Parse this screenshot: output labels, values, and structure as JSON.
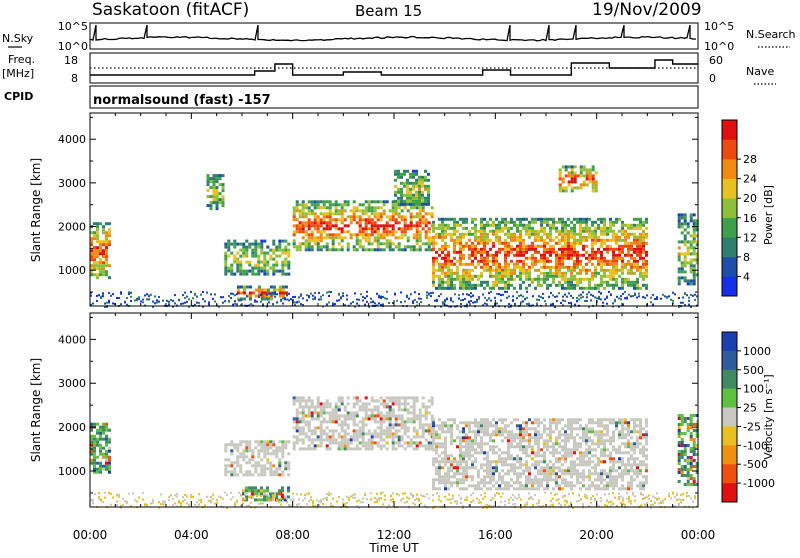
{
  "header": {
    "station": "Saskatoon (fitACF)",
    "beam": "Beam 15",
    "date": "19/Nov/2009"
  },
  "summary": {
    "nsky_label": "N.Sky",
    "nsky_ticks": [
      "10^5",
      "10^0"
    ],
    "nsearch_label": "N.Search",
    "nsearch_ticks": [
      "10^5",
      "10^0"
    ],
    "freq_label_1": "Freq.",
    "freq_label_2": "[MHz]",
    "freq_ticks": [
      "18",
      "8"
    ],
    "nave_label": "Nave",
    "nave_ticks": [
      "60",
      "0"
    ],
    "cpid_label": "CPID",
    "cpid_text": "normalsound (fast) -157"
  },
  "chart_data": [
    {
      "type": "heatmap",
      "name": "power",
      "xlabel": "Time UT",
      "ylabel": "Slant Range [km]",
      "xlim": [
        0,
        24
      ],
      "ylim": [
        180,
        4600
      ],
      "yticks": [
        1000,
        2000,
        3000,
        4000
      ],
      "colorbar": {
        "label": "Power [dB]",
        "ticks": [
          "4",
          "8",
          "12",
          "16",
          "20",
          "24",
          "28"
        ],
        "colors": [
          "#1530e8",
          "#1e4fa8",
          "#2f7d6e",
          "#3fa04a",
          "#8cc03a",
          "#e8c020",
          "#f08a10",
          "#ee4a10",
          "#e01010"
        ]
      },
      "echo_regions": [
        {
          "t_start": 0.0,
          "t_end": 0.8,
          "r_min": 800,
          "r_max": 2100,
          "level": "high"
        },
        {
          "t_start": 4.6,
          "t_end": 5.3,
          "r_min": 2400,
          "r_max": 3200,
          "level": "medium"
        },
        {
          "t_start": 5.3,
          "t_end": 7.8,
          "r_min": 900,
          "r_max": 1700,
          "level": "medium"
        },
        {
          "t_start": 5.8,
          "t_end": 7.8,
          "r_min": 350,
          "r_max": 650,
          "level": "high"
        },
        {
          "t_start": 8.0,
          "t_end": 13.5,
          "r_min": 1500,
          "r_max": 2600,
          "level": "high"
        },
        {
          "t_start": 12.0,
          "t_end": 13.4,
          "r_min": 2500,
          "r_max": 3300,
          "level": "medium"
        },
        {
          "t_start": 13.5,
          "t_end": 22.0,
          "r_min": 600,
          "r_max": 2200,
          "level": "high"
        },
        {
          "t_start": 18.5,
          "t_end": 20.0,
          "r_min": 2800,
          "r_max": 3400,
          "level": "high"
        },
        {
          "t_start": 23.2,
          "t_end": 24.0,
          "r_min": 700,
          "r_max": 2300,
          "level": "medium"
        }
      ]
    },
    {
      "type": "heatmap",
      "name": "velocity",
      "xlabel": "Time UT",
      "ylabel": "Slant Range [km]",
      "xlim": [
        0,
        24
      ],
      "ylim": [
        180,
        4600
      ],
      "yticks": [
        1000,
        2000,
        3000,
        4000
      ],
      "xtick_labels": [
        "00:00",
        "04:00",
        "08:00",
        "12:00",
        "16:00",
        "20:00",
        "00:00"
      ],
      "colorbar": {
        "label": "Velocity [m s⁻¹]",
        "ticks": [
          "1000",
          "500",
          "100",
          "25",
          "-25",
          "-100",
          "-500",
          "-1000"
        ],
        "colors": [
          "#1c3fb0",
          "#2e5d9c",
          "#3f8a60",
          "#5fbf40",
          "#c8c8c0",
          "#e8c020",
          "#f09010",
          "#ef5010",
          "#e01010"
        ]
      },
      "echo_regions": [
        {
          "t_start": 0.0,
          "t_end": 0.8,
          "r_min": 1000,
          "r_max": 2100,
          "level": "toward"
        },
        {
          "t_start": 5.3,
          "t_end": 7.8,
          "r_min": 900,
          "r_max": 1700,
          "level": "ground"
        },
        {
          "t_start": 6.0,
          "t_end": 7.8,
          "r_min": 350,
          "r_max": 650,
          "level": "toward"
        },
        {
          "t_start": 8.0,
          "t_end": 13.5,
          "r_min": 1500,
          "r_max": 2700,
          "level": "ground"
        },
        {
          "t_start": 13.5,
          "t_end": 22.0,
          "r_min": 600,
          "r_max": 2200,
          "level": "ground"
        },
        {
          "t_start": 23.2,
          "t_end": 24.0,
          "r_min": 700,
          "r_max": 2300,
          "level": "toward"
        }
      ]
    }
  ]
}
